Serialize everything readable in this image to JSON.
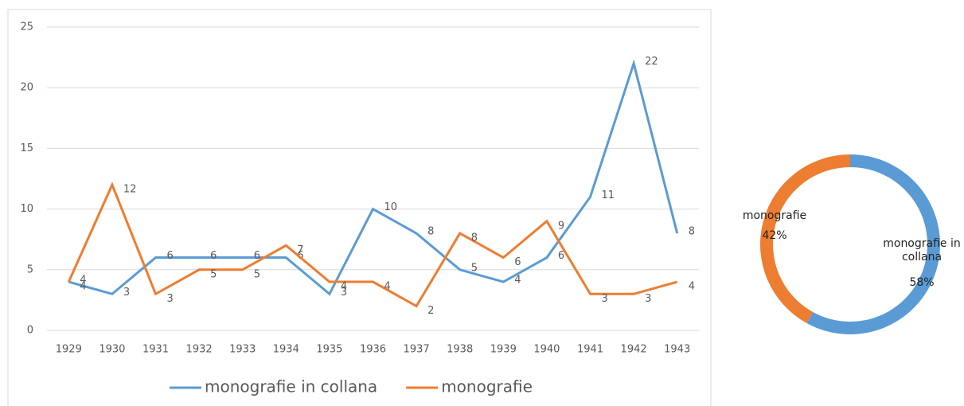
{
  "chart_data": [
    {
      "type": "line",
      "categories": [
        "1929",
        "1930",
        "1931",
        "1932",
        "1933",
        "1934",
        "1935",
        "1936",
        "1937",
        "1938",
        "1939",
        "1940",
        "1941",
        "1942",
        "1943"
      ],
      "series": [
        {
          "name": "monografie in collana",
          "color": "#5b9bd5",
          "values": [
            4,
            3,
            6,
            6,
            6,
            6,
            3,
            10,
            8,
            5,
            4,
            6,
            11,
            22,
            8
          ]
        },
        {
          "name": "monografie",
          "color": "#ed7d31",
          "values": [
            4,
            12,
            3,
            5,
            5,
            7,
            4,
            4,
            2,
            8,
            6,
            9,
            3,
            3,
            4
          ]
        }
      ],
      "ylim": [
        0,
        25
      ],
      "yticks": [
        0,
        5,
        10,
        15,
        20,
        25
      ],
      "grid": true,
      "legend": "bottom"
    },
    {
      "type": "donut",
      "categories": [
        "monografie in collana",
        "monografie"
      ],
      "values": [
        58,
        42
      ],
      "value_labels": [
        "58%",
        "42%"
      ],
      "colors": [
        "#5b9bd5",
        "#ed7d31"
      ]
    }
  ]
}
